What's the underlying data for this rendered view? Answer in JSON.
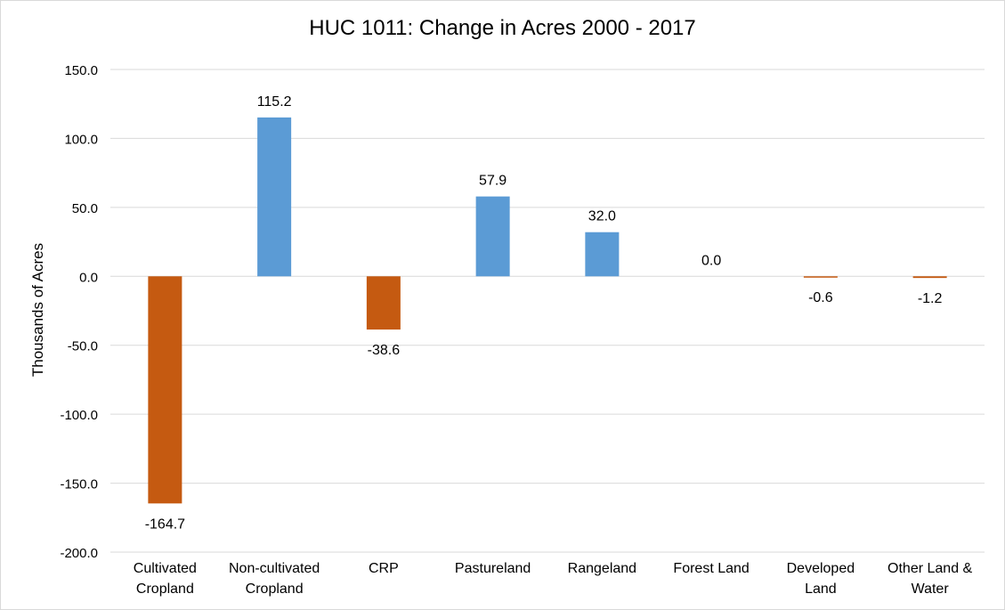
{
  "chart_data": {
    "type": "bar",
    "title": "HUC 1011: Change in Acres 2000 - 2017",
    "xlabel": "",
    "ylabel": "Thousands of Acres",
    "ylim": [
      -200,
      150
    ],
    "yticks": [
      "150.0",
      "100.0",
      "50.0",
      "0.0",
      "-50.0",
      "-100.0",
      "-150.0",
      "-200.0"
    ],
    "grid": true,
    "legend": "none",
    "categories": [
      [
        "Cultivated",
        "Cropland"
      ],
      [
        "Non-cultivated",
        "Cropland"
      ],
      [
        "CRP"
      ],
      [
        "Pastureland"
      ],
      [
        "Rangeland"
      ],
      [
        "Forest Land"
      ],
      [
        "Developed",
        "Land"
      ],
      [
        "Other Land &",
        "Water"
      ]
    ],
    "values": [
      -164.7,
      115.2,
      -38.6,
      57.9,
      32.0,
      0.0,
      -0.6,
      -1.2
    ],
    "data_labels": [
      "-164.7",
      "115.2",
      "-38.6",
      "57.9",
      "32.0",
      "0.0",
      "-0.6",
      "-1.2"
    ],
    "colors": {
      "positive": "#5b9bd5",
      "negative": "#c55a11",
      "grid": "#d9d9d9"
    }
  }
}
